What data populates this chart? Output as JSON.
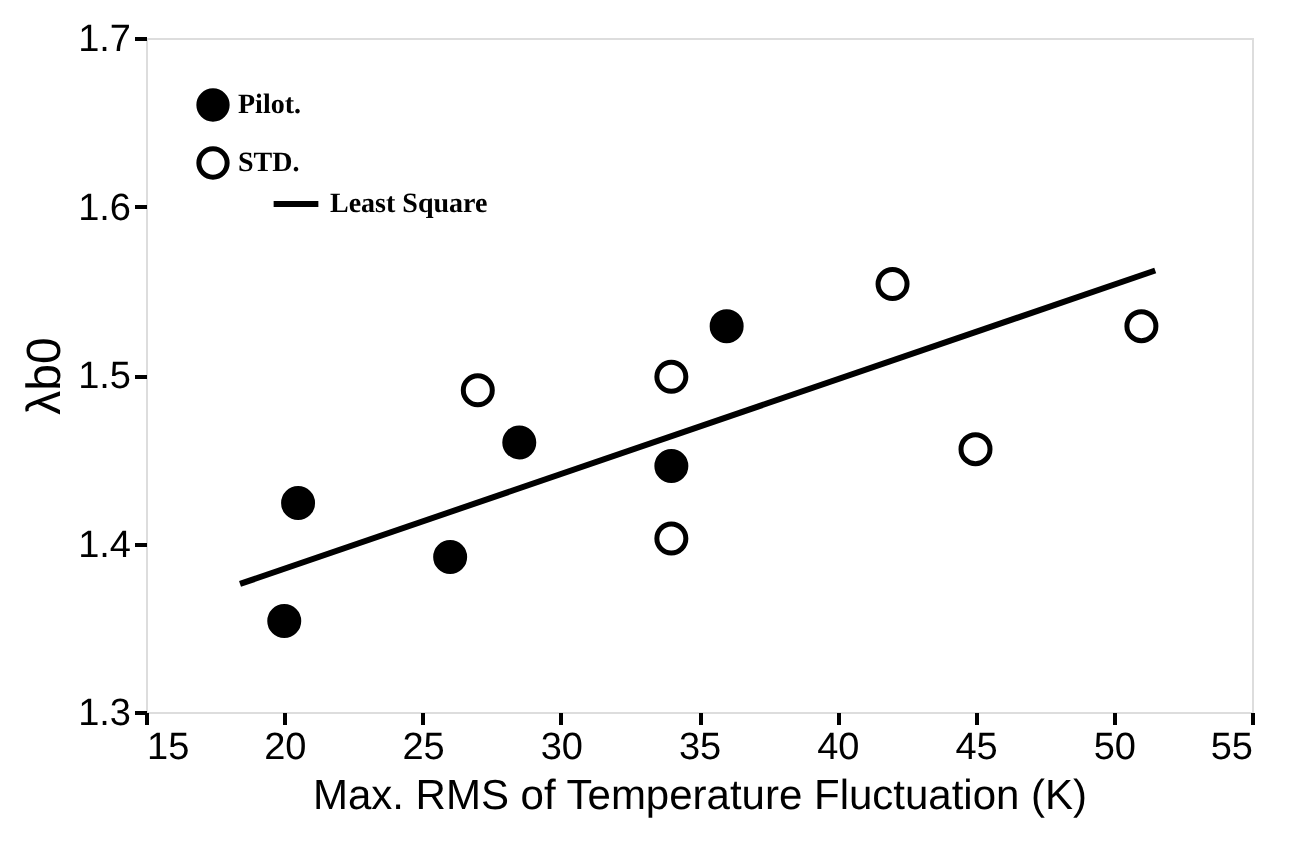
{
  "chart_data": {
    "type": "scatter",
    "xlabel": "Max. RMS of Temperature Fluctuation (K)",
    "ylabel": "λb0",
    "xlim": [
      15,
      55
    ],
    "xticks": [
      15,
      20,
      25,
      30,
      35,
      40,
      45,
      50,
      55
    ],
    "ylim": [
      1.3,
      1.7
    ],
    "yticks": [
      1.3,
      1.4,
      1.5,
      1.6,
      1.7
    ],
    "grid": false,
    "legend": "top left",
    "marker": "circle",
    "series": [
      {
        "name": "Pilot.",
        "color": "#000000",
        "x": [
          20,
          20.5,
          26,
          28.5,
          34,
          36
        ],
        "values": [
          1.354,
          1.424,
          1.392,
          1.46,
          1.446,
          1.529
        ]
      },
      {
        "name": "STD.",
        "color": "#ffffff",
        "x": [
          27,
          34,
          34,
          42,
          45,
          51
        ],
        "values": [
          1.491,
          1.499,
          1.403,
          1.554,
          1.456,
          1.529
        ]
      },
      {
        "name": "Least Square",
        "type": "line",
        "color": "#000000",
        "line_style": "solid",
        "marker": "none",
        "x": [
          18.4,
          51.5
        ],
        "values": [
          1.376,
          1.562
        ]
      }
    ]
  }
}
